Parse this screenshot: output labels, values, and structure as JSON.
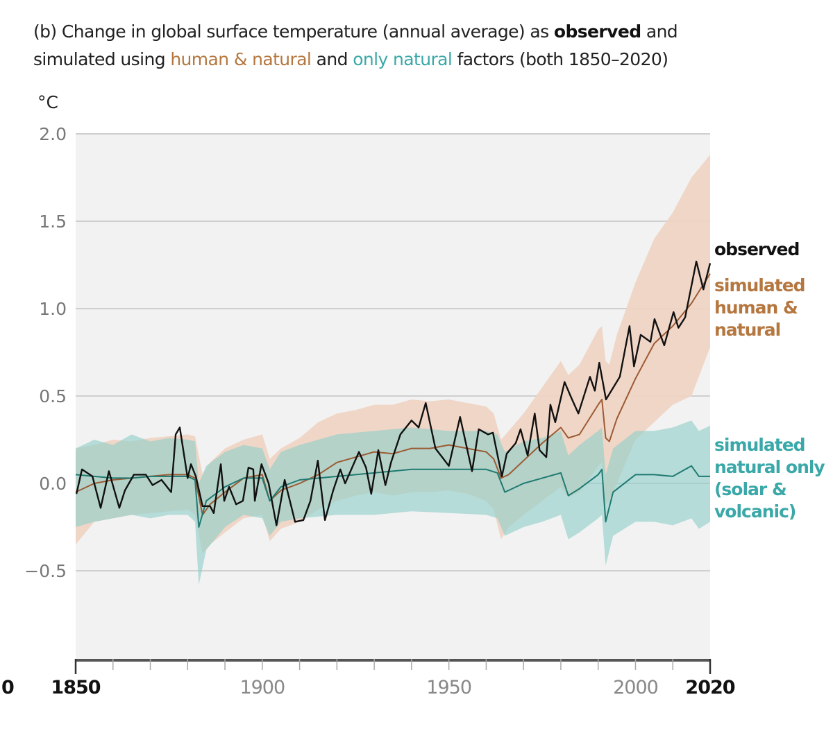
{
  "title": {
    "line1_a": "(b) Change in global surface temperature (annual average) as ",
    "line1_b": "observed",
    "line1_c": " and",
    "line2_a": "simulated using ",
    "line2_b": "human & natural",
    "line2_c": " and ",
    "line2_d": "only natural",
    "line2_e": " factors (both 1850–2020)"
  },
  "chart_data": {
    "type": "line",
    "ylabel": "°C",
    "ylim": [
      -1.0,
      2.0
    ],
    "xlim": [
      1850,
      2020
    ],
    "yticks": [
      2.0,
      1.5,
      1.0,
      0.5,
      0.0,
      -0.5
    ],
    "ytick_labels": [
      "2.0",
      "1.5",
      "1.0",
      "0.5",
      "0.0",
      "−0.5"
    ],
    "xticks_minor_step": 10,
    "xtick_labels": [
      {
        "value": 1850,
        "label": "1850",
        "bold": true
      },
      {
        "value": 1900,
        "label": "1900",
        "bold": false
      },
      {
        "value": 1950,
        "label": "1950",
        "bold": false
      },
      {
        "value": 2000,
        "label": "2000",
        "bold": false
      },
      {
        "value": 2020,
        "label": "2020",
        "bold": true
      }
    ],
    "clipped_left_label": "0",
    "grid": true,
    "colors": {
      "observed": "#111111",
      "human_natural_line": "#9b5a33",
      "human_natural_band": "#f0d3c2",
      "natural_line": "#1f7a72",
      "natural_band": "#93cfca",
      "human_natural_text": "#b5773f",
      "natural_text": "#3aa8a8",
      "plot_bg": "#f2f2f2"
    },
    "series": [
      {
        "name": "observed",
        "label_lines": [
          "observed"
        ],
        "x": [
          1850.2,
          1851.7,
          1854.5,
          1856.7,
          1858.9,
          1861.7,
          1863.2,
          1865.6,
          1868.8,
          1870.6,
          1873,
          1875.6,
          1876.8,
          1877.9,
          1880,
          1880.9,
          1882.2,
          1884,
          1886,
          1887,
          1888.9,
          1889.8,
          1891.1,
          1893,
          1894.8,
          1896.3,
          1897.6,
          1898,
          1899.8,
          1901.7,
          1903.8,
          1906,
          1908.8,
          1911,
          1912.9,
          1914.9,
          1916.8,
          1919,
          1920.9,
          1922.2,
          1925.9,
          1927.8,
          1929.2,
          1931.1,
          1933,
          1934.5,
          1937,
          1940,
          1941.9,
          1943.8,
          1946.4,
          1950,
          1953,
          1956.2,
          1958,
          1960.5,
          1961.8,
          1964.2,
          1965.5,
          1967.9,
          1969.2,
          1971.1,
          1973,
          1974.3,
          1976.1,
          1977.2,
          1978.5,
          1981,
          1982.8,
          1984.7,
          1987.8,
          1989.1,
          1990.3,
          1992.1,
          1995.8,
          1998.4,
          1999.6,
          2001.4,
          2004,
          2005.1,
          2007.7,
          2010.2,
          2011.5,
          2013.3,
          2016.3,
          2018.2,
          2020
        ],
        "y": [
          -0.06,
          0.08,
          0.04,
          -0.14,
          0.07,
          -0.14,
          -0.04,
          0.05,
          0.05,
          -0.01,
          0.02,
          -0.05,
          0.28,
          0.32,
          0.03,
          0.11,
          0.04,
          -0.13,
          -0.13,
          -0.17,
          0.11,
          -0.1,
          -0.02,
          -0.12,
          -0.1,
          0.09,
          0.08,
          -0.1,
          0.11,
          0.0,
          -0.24,
          0.02,
          -0.22,
          -0.21,
          -0.1,
          0.13,
          -0.21,
          -0.04,
          0.08,
          0.0,
          0.18,
          0.09,
          -0.06,
          0.19,
          -0.01,
          0.12,
          0.28,
          0.36,
          0.32,
          0.46,
          0.2,
          0.1,
          0.38,
          0.07,
          0.31,
          0.28,
          0.29,
          0.04,
          0.17,
          0.23,
          0.31,
          0.16,
          0.4,
          0.19,
          0.15,
          0.45,
          0.35,
          0.58,
          0.49,
          0.4,
          0.61,
          0.53,
          0.69,
          0.48,
          0.61,
          0.9,
          0.67,
          0.85,
          0.81,
          0.94,
          0.79,
          0.98,
          0.89,
          0.95,
          1.27,
          1.11,
          1.26
        ]
      },
      {
        "name": "simulated human & natural",
        "label_lines": [
          "simulated",
          "human &",
          "natural"
        ],
        "x": [
          1850,
          1855,
          1860,
          1865,
          1870,
          1875,
          1880,
          1882,
          1884,
          1886,
          1890,
          1895,
          1900,
          1902,
          1905,
          1910,
          1915,
          1920,
          1925,
          1930,
          1935,
          1940,
          1945,
          1950,
          1955,
          1960,
          1962,
          1964,
          1966,
          1970,
          1975,
          1980,
          1982,
          1985,
          1990,
          1991,
          1992,
          1993,
          1995,
          2000,
          2005,
          2010,
          2015,
          2020
        ],
        "y": [
          -0.05,
          0.0,
          0.02,
          0.03,
          0.04,
          0.05,
          0.05,
          0.03,
          -0.18,
          -0.12,
          -0.05,
          0.03,
          0.05,
          -0.1,
          -0.04,
          0.0,
          0.05,
          0.12,
          0.15,
          0.18,
          0.17,
          0.2,
          0.2,
          0.22,
          0.2,
          0.18,
          0.14,
          0.03,
          0.05,
          0.13,
          0.23,
          0.32,
          0.26,
          0.28,
          0.45,
          0.48,
          0.26,
          0.24,
          0.37,
          0.6,
          0.8,
          0.9,
          1.03,
          1.2
        ],
        "upper": [
          0.2,
          0.22,
          0.25,
          0.24,
          0.26,
          0.27,
          0.28,
          0.27,
          0.05,
          0.12,
          0.2,
          0.25,
          0.28,
          0.14,
          0.2,
          0.26,
          0.35,
          0.4,
          0.42,
          0.45,
          0.45,
          0.48,
          0.47,
          0.48,
          0.46,
          0.44,
          0.4,
          0.25,
          0.3,
          0.4,
          0.55,
          0.7,
          0.62,
          0.68,
          0.88,
          0.9,
          0.7,
          0.68,
          0.85,
          1.15,
          1.4,
          1.55,
          1.75,
          1.88
        ],
        "lower": [
          -0.35,
          -0.22,
          -0.2,
          -0.18,
          -0.17,
          -0.16,
          -0.15,
          -0.18,
          -0.4,
          -0.35,
          -0.28,
          -0.2,
          -0.18,
          -0.33,
          -0.26,
          -0.22,
          -0.15,
          -0.1,
          -0.07,
          -0.05,
          -0.07,
          -0.05,
          -0.05,
          -0.04,
          -0.06,
          -0.1,
          -0.15,
          -0.32,
          -0.25,
          -0.18,
          -0.1,
          -0.02,
          -0.08,
          -0.05,
          0.1,
          0.12,
          -0.12,
          -0.1,
          0.0,
          0.25,
          0.35,
          0.45,
          0.5,
          0.78
        ]
      },
      {
        "name": "simulated natural only (solar & volcanic)",
        "label_lines": [
          "simulated",
          "natural only",
          "(solar &",
          "volcanic)"
        ],
        "x": [
          1850,
          1855,
          1860,
          1865,
          1870,
          1875,
          1880,
          1882,
          1883,
          1885,
          1890,
          1895,
          1900,
          1902,
          1905,
          1910,
          1920,
          1930,
          1940,
          1950,
          1960,
          1963,
          1965,
          1970,
          1975,
          1980,
          1982,
          1985,
          1990,
          1991,
          1992,
          1994,
          2000,
          2005,
          2010,
          2015,
          2017,
          2020
        ],
        "y": [
          0.05,
          0.04,
          0.03,
          0.03,
          0.04,
          0.04,
          0.04,
          0.02,
          -0.25,
          -0.1,
          -0.02,
          0.03,
          0.03,
          -0.1,
          -0.02,
          0.02,
          0.04,
          0.06,
          0.08,
          0.08,
          0.08,
          0.06,
          -0.05,
          0.0,
          0.03,
          0.06,
          -0.07,
          -0.03,
          0.05,
          0.08,
          -0.22,
          -0.05,
          0.05,
          0.05,
          0.04,
          0.1,
          0.04,
          0.04
        ],
        "upper": [
          0.2,
          0.25,
          0.22,
          0.28,
          0.24,
          0.26,
          0.25,
          0.24,
          0.0,
          0.1,
          0.18,
          0.22,
          0.2,
          0.08,
          0.18,
          0.22,
          0.28,
          0.3,
          0.32,
          0.3,
          0.3,
          0.28,
          0.18,
          0.24,
          0.26,
          0.3,
          0.16,
          0.22,
          0.3,
          0.32,
          0.05,
          0.2,
          0.3,
          0.3,
          0.32,
          0.36,
          0.3,
          0.33
        ],
        "lower": [
          -0.25,
          -0.22,
          -0.2,
          -0.18,
          -0.2,
          -0.18,
          -0.18,
          -0.22,
          -0.58,
          -0.38,
          -0.25,
          -0.18,
          -0.2,
          -0.3,
          -0.22,
          -0.2,
          -0.18,
          -0.18,
          -0.16,
          -0.17,
          -0.18,
          -0.2,
          -0.3,
          -0.25,
          -0.22,
          -0.18,
          -0.32,
          -0.28,
          -0.2,
          -0.18,
          -0.47,
          -0.3,
          -0.22,
          -0.22,
          -0.24,
          -0.2,
          -0.26,
          -0.22
        ]
      }
    ]
  }
}
